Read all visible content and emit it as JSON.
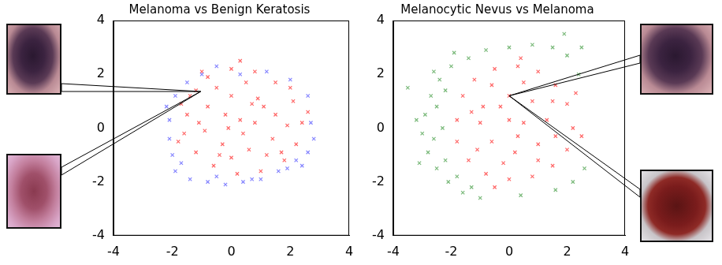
{
  "chart_data": [
    {
      "type": "scatter",
      "title": "Melanoma vs Benign Keratosis",
      "xlim": [
        -4,
        4
      ],
      "ylim": [
        -4,
        4
      ],
      "xticks": [
        -4,
        -2,
        0,
        2,
        4
      ],
      "yticks": [
        -4,
        -2,
        0,
        2,
        4
      ],
      "grid": false,
      "marker": "x",
      "series": [
        {
          "color": "#3333ff",
          "values": [
            [
              -1.9,
              -1.6
            ],
            [
              -1.4,
              -1.9
            ],
            [
              -0.8,
              -2.0
            ],
            [
              -0.2,
              -2.1
            ],
            [
              0.4,
              -2.0
            ],
            [
              1.0,
              -1.9
            ],
            [
              1.6,
              -1.6
            ],
            [
              2.2,
              -1.2
            ],
            [
              2.6,
              -0.9
            ],
            [
              2.8,
              -0.4
            ],
            [
              2.4,
              -1.4
            ],
            [
              -2.0,
              -1.0
            ],
            [
              -2.1,
              -0.4
            ],
            [
              -2.1,
              0.3
            ],
            [
              -1.9,
              1.2
            ],
            [
              -1.5,
              1.7
            ],
            [
              -1.0,
              2.0
            ],
            [
              -0.5,
              2.3
            ],
            [
              0.3,
              2.0
            ],
            [
              1.2,
              2.1
            ],
            [
              2.0,
              1.8
            ],
            [
              2.6,
              1.2
            ],
            [
              -1.7,
              -1.3
            ],
            [
              1.9,
              -1.5
            ],
            [
              -0.5,
              -1.8
            ],
            [
              0.7,
              -1.9
            ],
            [
              2.7,
              0.2
            ],
            [
              -2.2,
              0.8
            ]
          ]
        },
        {
          "color": "#ff0000",
          "values": [
            [
              -1.5,
              0.5
            ],
            [
              -1.2,
              1.4
            ],
            [
              -0.8,
              1.9
            ],
            [
              0.0,
              2.2
            ],
            [
              0.8,
              2.1
            ],
            [
              1.5,
              1.7
            ],
            [
              2.1,
              1.0
            ],
            [
              2.4,
              0.2
            ],
            [
              2.2,
              -0.6
            ],
            [
              1.8,
              -1.2
            ],
            [
              1.0,
              -1.6
            ],
            [
              0.2,
              -1.7
            ],
            [
              -0.6,
              -1.4
            ],
            [
              -1.2,
              -0.9
            ],
            [
              -1.6,
              -0.2
            ],
            [
              -1.7,
              0.9
            ],
            [
              -0.8,
              0.8
            ],
            [
              0.0,
              1.2
            ],
            [
              0.9,
              1.1
            ],
            [
              1.5,
              0.5
            ],
            [
              1.4,
              -0.4
            ],
            [
              0.6,
              -0.8
            ],
            [
              -0.3,
              -0.6
            ],
            [
              -0.9,
              -0.1
            ],
            [
              0.3,
              0.3
            ],
            [
              0.8,
              0.2
            ],
            [
              -0.2,
              0.5
            ],
            [
              0.4,
              -0.2
            ],
            [
              1.1,
              0.8
            ],
            [
              -0.5,
              1.5
            ],
            [
              0.5,
              1.7
            ],
            [
              1.9,
              0.1
            ],
            [
              -1.1,
              0.2
            ],
            [
              0.0,
              -1.1
            ],
            [
              1.2,
              -1.0
            ],
            [
              -0.4,
              -1.0
            ],
            [
              2.0,
              1.5
            ],
            [
              -1.4,
              1.2
            ],
            [
              0.7,
              0.9
            ],
            [
              -0.1,
              0.0
            ],
            [
              1.7,
              -0.9
            ],
            [
              2.6,
              0.6
            ],
            [
              -1.8,
              -0.5
            ],
            [
              0.3,
              2.5
            ],
            [
              -1.0,
              2.1
            ]
          ]
        }
      ]
    },
    {
      "type": "scatter",
      "title": "Melanocytic Nevus vs Melanoma",
      "xlim": [
        -4,
        4
      ],
      "ylim": [
        -4,
        4
      ],
      "xticks": [
        -4,
        -2,
        0,
        2,
        4
      ],
      "yticks": [
        -4,
        -2,
        0,
        2,
        4
      ],
      "grid": false,
      "marker": "x",
      "series": [
        {
          "color": "#228b22",
          "values": [
            [
              -2.0,
              2.3
            ],
            [
              -2.4,
              1.8
            ],
            [
              -2.7,
              1.2
            ],
            [
              -2.9,
              0.5
            ],
            [
              -3.0,
              -0.2
            ],
            [
              -2.8,
              -0.9
            ],
            [
              -2.5,
              -1.5
            ],
            [
              -2.1,
              -2.0
            ],
            [
              -1.6,
              -2.4
            ],
            [
              -1.0,
              -2.6
            ],
            [
              -2.3,
              0.0
            ],
            [
              -2.5,
              0.8
            ],
            [
              -2.2,
              1.4
            ],
            [
              -2.2,
              -1.2
            ],
            [
              -1.8,
              -1.8
            ],
            [
              -1.4,
              2.6
            ],
            [
              -0.8,
              2.9
            ],
            [
              0.0,
              3.0
            ],
            [
              0.8,
              3.1
            ],
            [
              1.5,
              3.0
            ],
            [
              2.0,
              2.7
            ],
            [
              2.4,
              2.0
            ],
            [
              1.9,
              3.5
            ],
            [
              2.5,
              3.0
            ],
            [
              -3.2,
              0.3
            ],
            [
              -2.6,
              -0.4
            ],
            [
              -3.1,
              -1.3
            ],
            [
              2.6,
              -1.5
            ],
            [
              2.2,
              -2.0
            ],
            [
              1.6,
              -2.3
            ],
            [
              0.4,
              -2.5
            ],
            [
              -1.9,
              2.8
            ],
            [
              -2.6,
              2.1
            ],
            [
              -1.3,
              -2.2
            ],
            [
              -3.5,
              1.5
            ]
          ]
        },
        {
          "color": "#ff0000",
          "values": [
            [
              -1.8,
              0.3
            ],
            [
              -1.6,
              1.2
            ],
            [
              -1.2,
              1.8
            ],
            [
              -0.5,
              2.2
            ],
            [
              0.3,
              2.3
            ],
            [
              1.0,
              2.1
            ],
            [
              1.6,
              1.6
            ],
            [
              2.0,
              0.9
            ],
            [
              2.2,
              0.0
            ],
            [
              2.0,
              -0.8
            ],
            [
              1.5,
              -1.4
            ],
            [
              0.8,
              -1.8
            ],
            [
              0.0,
              -1.9
            ],
            [
              -0.8,
              -1.7
            ],
            [
              -1.4,
              -1.2
            ],
            [
              -1.8,
              -0.5
            ],
            [
              -0.9,
              0.8
            ],
            [
              0.0,
              1.2
            ],
            [
              0.8,
              1.0
            ],
            [
              1.3,
              0.3
            ],
            [
              1.0,
              -0.6
            ],
            [
              0.2,
              -0.9
            ],
            [
              -0.6,
              -0.5
            ],
            [
              -1.0,
              0.2
            ],
            [
              0.0,
              0.3
            ],
            [
              0.5,
              0.2
            ],
            [
              -0.3,
              0.8
            ],
            [
              0.3,
              -0.3
            ],
            [
              1.5,
              1.0
            ],
            [
              -0.6,
              1.6
            ],
            [
              0.5,
              1.7
            ],
            [
              1.6,
              -0.3
            ],
            [
              -1.3,
              0.6
            ],
            [
              -0.2,
              -1.3
            ],
            [
              1.0,
              -1.2
            ],
            [
              -1.1,
              -0.8
            ],
            [
              2.5,
              -0.3
            ],
            [
              -0.5,
              -2.2
            ],
            [
              0.4,
              2.6
            ],
            [
              2.3,
              1.3
            ]
          ]
        }
      ]
    }
  ]
}
